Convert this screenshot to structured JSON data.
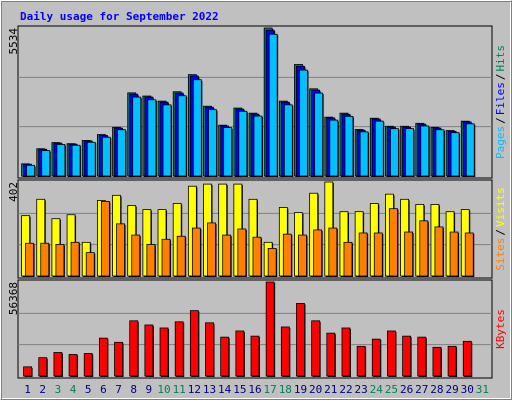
{
  "title": "Daily usage for September 2022",
  "legend_separator": "/",
  "categories": [
    "1",
    "2",
    "3",
    "4",
    "5",
    "6",
    "7",
    "8",
    "9",
    "10",
    "11",
    "12",
    "13",
    "14",
    "15",
    "16",
    "17",
    "18",
    "19",
    "20",
    "21",
    "22",
    "23",
    "24",
    "25",
    "26",
    "27",
    "28",
    "29",
    "30",
    "31"
  ],
  "category_colors": [
    "#000080",
    "#000080",
    "#00805c",
    "#00805c",
    "#000080",
    "#000080",
    "#000080",
    "#000080",
    "#000080",
    "#00805c",
    "#00805c",
    "#000080",
    "#000080",
    "#000080",
    "#000080",
    "#000080",
    "#00805c",
    "#00805c",
    "#000080",
    "#000080",
    "#000080",
    "#000080",
    "#000080",
    "#00805c",
    "#00805c",
    "#000080",
    "#000080",
    "#000080",
    "#000080",
    "#000080",
    "#00805c"
  ],
  "chart_data": [
    {
      "type": "bar",
      "ylim": [
        0,
        5534
      ],
      "yticks": [
        5534
      ],
      "grid_divisions": 3,
      "series": [
        {
          "name": "Pages",
          "color": "#00c0ff",
          "values": [
            400,
            950,
            1180,
            1150,
            1260,
            1450,
            1730,
            2950,
            2850,
            2660,
            3000,
            3600,
            2480,
            1810,
            2420,
            2240,
            5300,
            2660,
            3960,
            3100,
            2090,
            2230,
            1650,
            2050,
            1770,
            1770,
            1870,
            1730,
            1620,
            1950,
            null
          ]
        },
        {
          "name": "Files",
          "color": "#0000ff",
          "values": [
            440,
            1000,
            1230,
            1190,
            1310,
            1520,
            1790,
            3060,
            2950,
            2760,
            3100,
            3740,
            2570,
            1870,
            2500,
            2310,
            5450,
            2760,
            4100,
            3210,
            2170,
            2310,
            1710,
            2130,
            1830,
            1830,
            1940,
            1790,
            1670,
            2020,
            null
          ]
        },
        {
          "name": "Hits",
          "color": "#00805c",
          "values": [
            455,
            1020,
            1250,
            1210,
            1330,
            1550,
            1820,
            3110,
            2990,
            2800,
            3150,
            3790,
            2610,
            1900,
            2540,
            2350,
            5534,
            2800,
            4170,
            3260,
            2200,
            2350,
            1740,
            2160,
            1860,
            1860,
            1970,
            1820,
            1700,
            2050,
            null
          ]
        }
      ]
    },
    {
      "type": "bar",
      "ylim": [
        0,
        402
      ],
      "yticks": [
        402
      ],
      "grid_divisions": 3,
      "series": [
        {
          "name": "Sites",
          "color": "#ff8000",
          "values": [
            140,
            140,
            135,
            144,
            100,
            319,
            223,
            175,
            135,
            157,
            170,
            205,
            227,
            175,
            201,
            166,
            118,
            179,
            175,
            197,
            205,
            144,
            184,
            184,
            288,
            188,
            236,
            210,
            188,
            184,
            null
          ]
        },
        {
          "name": "Visits",
          "color": "#ffff00",
          "values": [
            258,
            328,
            245,
            262,
            144,
            323,
            345,
            301,
            284,
            284,
            310,
            384,
            393,
            393,
            393,
            328,
            144,
            293,
            271,
            354,
            402,
            275,
            275,
            310,
            350,
            328,
            306,
            306,
            275,
            284,
            null
          ]
        }
      ]
    },
    {
      "type": "bar",
      "ylim": [
        0,
        56368
      ],
      "yticks": [
        56368
      ],
      "grid_divisions": 3,
      "series": [
        {
          "name": "KBytes",
          "color": "#ff0000",
          "values": [
            5500,
            11000,
            14100,
            12900,
            13500,
            22700,
            20200,
            33100,
            30600,
            28800,
            32500,
            39200,
            31900,
            23300,
            27000,
            23900,
            56368,
            29400,
            43500,
            33100,
            25700,
            28800,
            17800,
            22100,
            27000,
            23900,
            23300,
            17200,
            17800,
            20800,
            null
          ]
        }
      ]
    }
  ]
}
